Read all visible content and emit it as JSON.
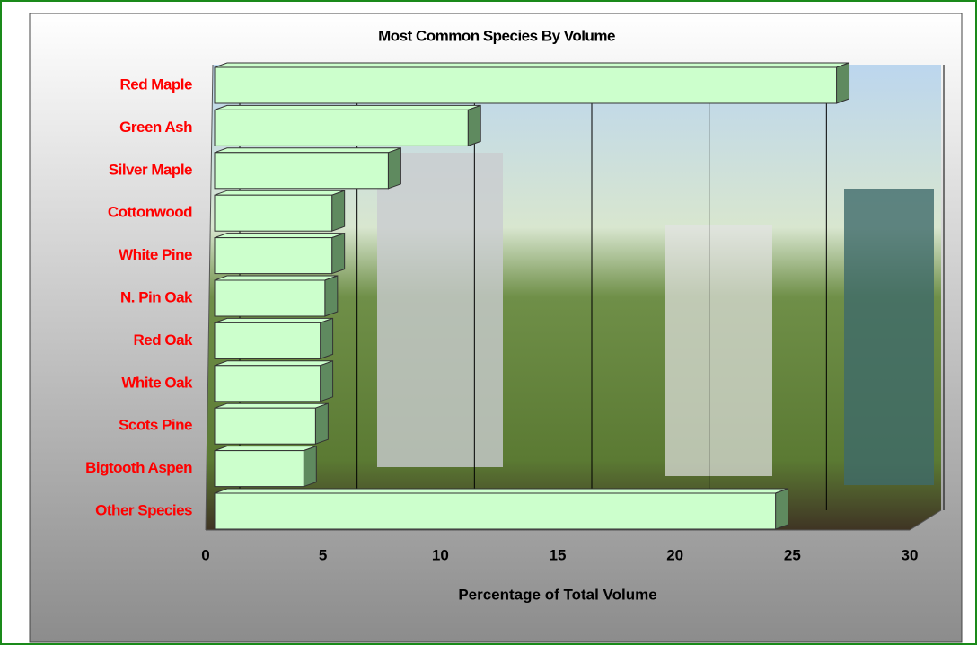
{
  "chart_data": {
    "type": "bar3d_horizontal",
    "title": "Most Common Species By Volume",
    "categories": [
      "Red Maple",
      "Green Ash",
      "Silver Maple",
      "Cottonwood",
      "White Pine",
      "N. Pin Oak",
      "Red Oak",
      "White Oak",
      "Scots Pine",
      "Bigtooth Aspen",
      "Other Species"
    ],
    "values": [
      26.5,
      10.8,
      7.4,
      5.0,
      5.0,
      4.7,
      4.5,
      4.5,
      4.3,
      3.8,
      23.9
    ],
    "color": "#ccffcc",
    "side_color": "#5f8a5f",
    "label_color": "#ff0000",
    "xlim": [
      0,
      30
    ],
    "xticks": [
      0,
      5,
      10,
      15,
      20,
      25,
      30
    ],
    "x_label": "Percentage of Total Volume",
    "grid": true
  }
}
